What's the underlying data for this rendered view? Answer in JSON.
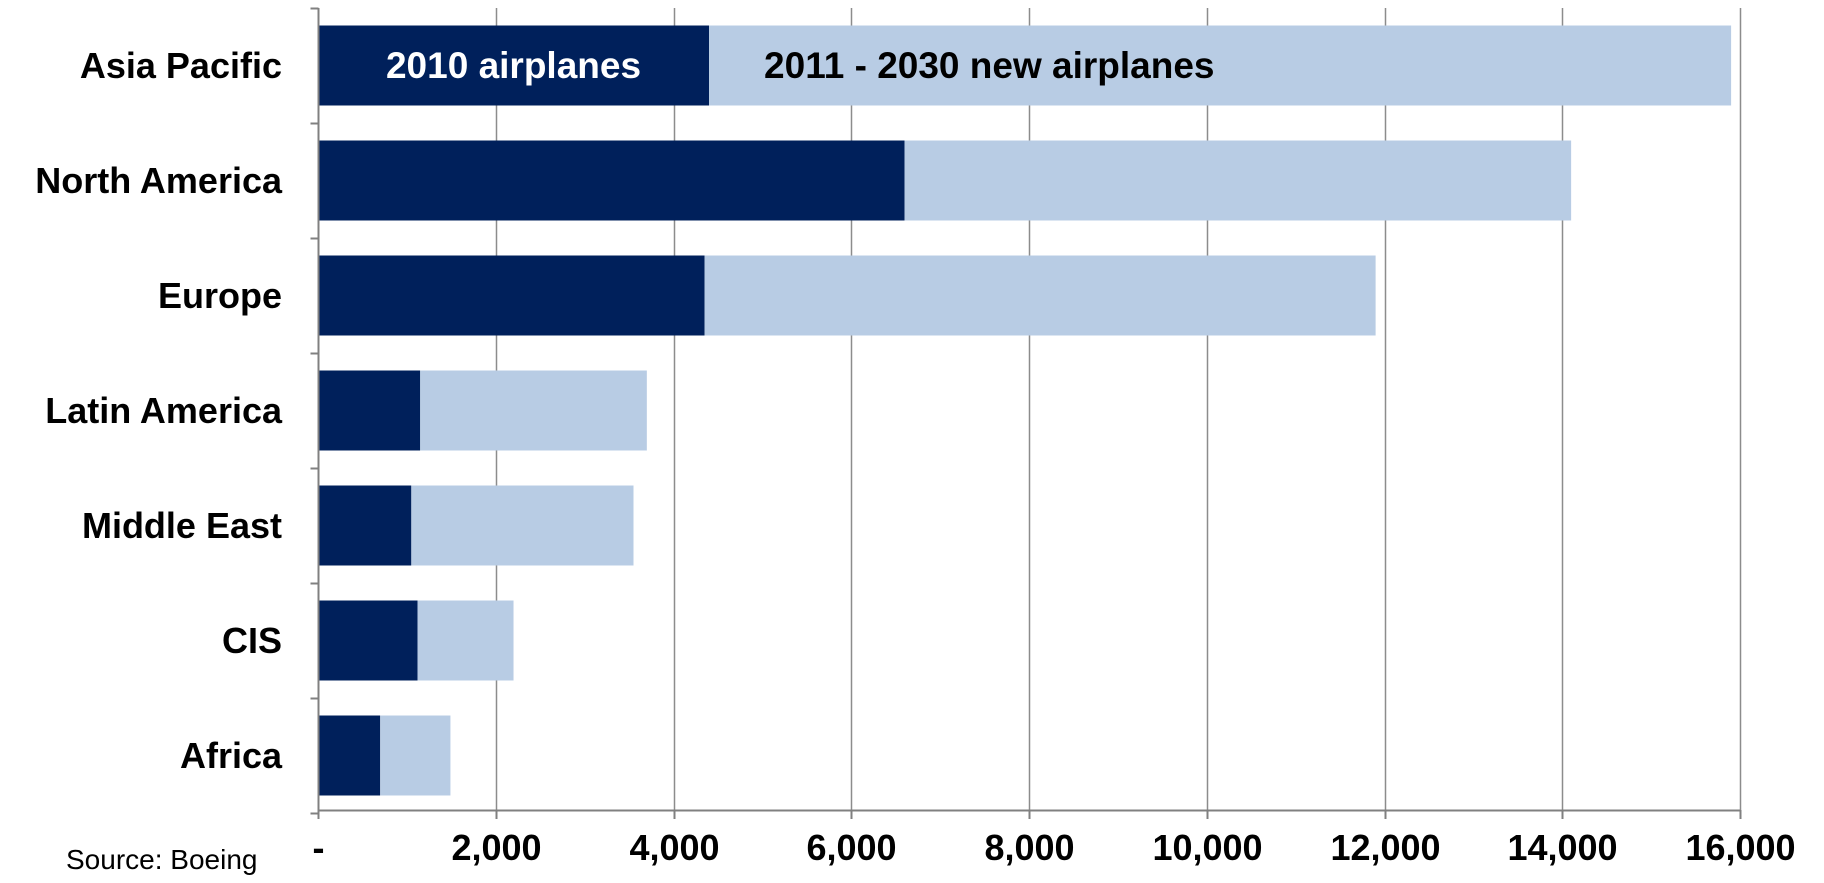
{
  "source_text": "Source: Boeing",
  "chart_data": {
    "type": "bar",
    "orientation": "horizontal",
    "stacked": true,
    "categories": [
      "Asia Pacific",
      "North America",
      "Europe",
      "Latin America",
      "Middle East",
      "CIS",
      "Africa"
    ],
    "series": [
      {
        "name": "2010 airplanes",
        "color": "#00205B",
        "label_color": "#FFFFFF",
        "values": [
          4400,
          6600,
          4350,
          1150,
          1050,
          1120,
          700
        ]
      },
      {
        "name": "2011 - 2030 new airplanes",
        "color": "#B8CCE4",
        "label_color": "#000000",
        "values": [
          11500,
          7500,
          7550,
          2550,
          2500,
          1080,
          790
        ]
      }
    ],
    "annotations": [
      {
        "text": "2010 airplanes",
        "series": 0,
        "category": "Asia Pacific"
      },
      {
        "text": "2011 - 2030 new airplanes",
        "series": 1,
        "category": "Asia Pacific"
      }
    ],
    "xlim": [
      0,
      16000
    ],
    "x_ticks": [
      0,
      2000,
      4000,
      6000,
      8000,
      10000,
      12000,
      14000,
      16000
    ],
    "x_tick_labels": [
      "-",
      "2,000",
      "4,000",
      "6,000",
      "8,000",
      "10,000",
      "12,000",
      "14,000",
      "16,000"
    ],
    "grid": "vertical",
    "grid_color": "#8C8C8C",
    "axis_color": "#808080",
    "legend": "none",
    "title": "",
    "xlabel": "",
    "ylabel": ""
  }
}
